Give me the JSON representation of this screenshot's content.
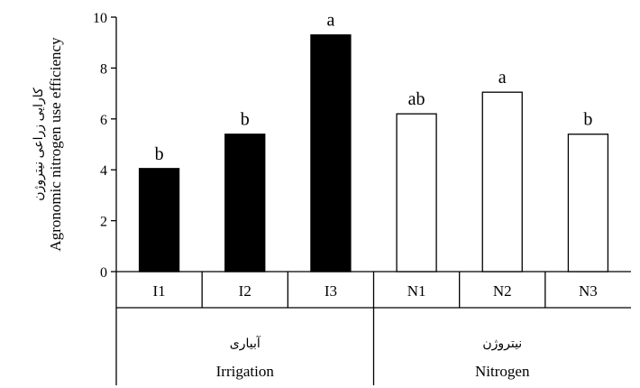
{
  "chart_data": {
    "type": "bar",
    "ylabel": "Agronomic nitrogen use efficiency",
    "ylabel_fa": "کارایی زراعی نیتروژن",
    "ylim": [
      0,
      10
    ],
    "yticks": [
      "0",
      "2",
      "4",
      "6",
      "8",
      "10"
    ],
    "grid": false,
    "legend": "none",
    "categories": [
      "I1",
      "I2",
      "I3",
      "N1",
      "N2",
      "N3"
    ],
    "values": [
      4.05,
      5.4,
      9.3,
      6.2,
      7.05,
      5.4
    ],
    "letters": [
      "b",
      "b",
      "a",
      "ab",
      "a",
      "b"
    ],
    "fills": [
      "#000000",
      "#000000",
      "#000000",
      "#ffffff",
      "#ffffff",
      "#ffffff"
    ],
    "groups": [
      {
        "label": "Irrigation",
        "label_fa": "آبیاری",
        "categories": [
          "I1",
          "I2",
          "I3"
        ]
      },
      {
        "label": "Nitrogen",
        "label_fa": "نیتروژن",
        "categories": [
          "N1",
          "N2",
          "N3"
        ]
      }
    ]
  }
}
